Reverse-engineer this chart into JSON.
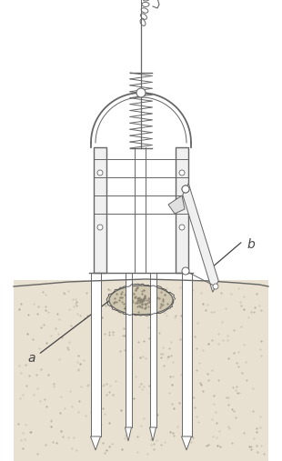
{
  "fig_width": 3.1,
  "fig_height": 5.07,
  "dpi": 100,
  "bg_color": "#ffffff",
  "lc": "#666666",
  "lc_dark": "#444444",
  "lc_thin": "#888888",
  "ground_fill": "#e8e0d0",
  "ground_line": "#666666",
  "label_a": "a",
  "label_b": "b",
  "label_fontsize": 10
}
